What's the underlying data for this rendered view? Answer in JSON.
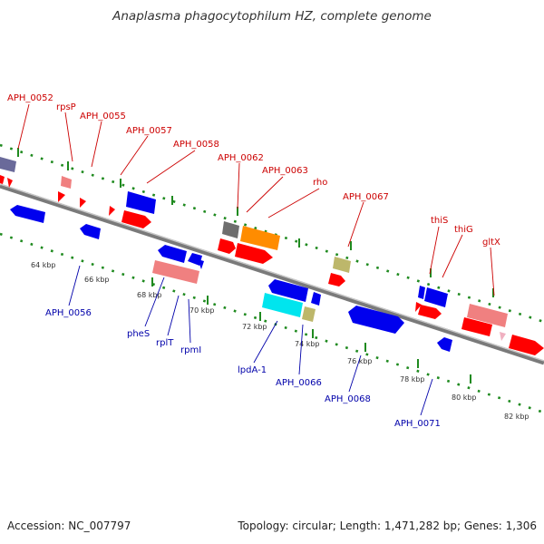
{
  "title": "Anaplasma phagocytophilum HZ, complete genome",
  "footer": {
    "accession": "Accession: NC_007797",
    "topology": "Topology: circular; Length: 1,471,282 bp; Genes: 1,306"
  },
  "colors": {
    "backbone": "#8a8a8a",
    "tick_dots": "#1f8a1f",
    "label_red": "#cc0000",
    "label_blue": "#0000aa",
    "gene_red": "#ff0000",
    "gene_blue": "#0000ee",
    "gene_pink": "#f08080",
    "gene_orange": "#ff8c00",
    "gene_olive": "#bdb76b",
    "gene_cyan": "#00e5ee",
    "gene_gray": "#6e6e6e",
    "gene_slate": "#6a6a9a"
  },
  "map": {
    "kbp_ticks": [
      "64 kbp",
      "66 kbp",
      "68 kbp",
      "70 kbp",
      "72 kbp",
      "74 kbp",
      "76 kbp",
      "78 kbp",
      "80 kbp",
      "82 kbp"
    ],
    "top_labels": [
      "APH_0052",
      "rpsP",
      "APH_0055",
      "APH_0057",
      "APH_0058",
      "APH_0062",
      "APH_0063",
      "rho",
      "APH_0067",
      "thiS",
      "thiG",
      "gltX"
    ],
    "bottom_labels": [
      "APH_0056",
      "pheS",
      "rplT",
      "rpmI",
      "lpdA-1",
      "APH_0066",
      "APH_0068",
      "APH_0071"
    ]
  }
}
